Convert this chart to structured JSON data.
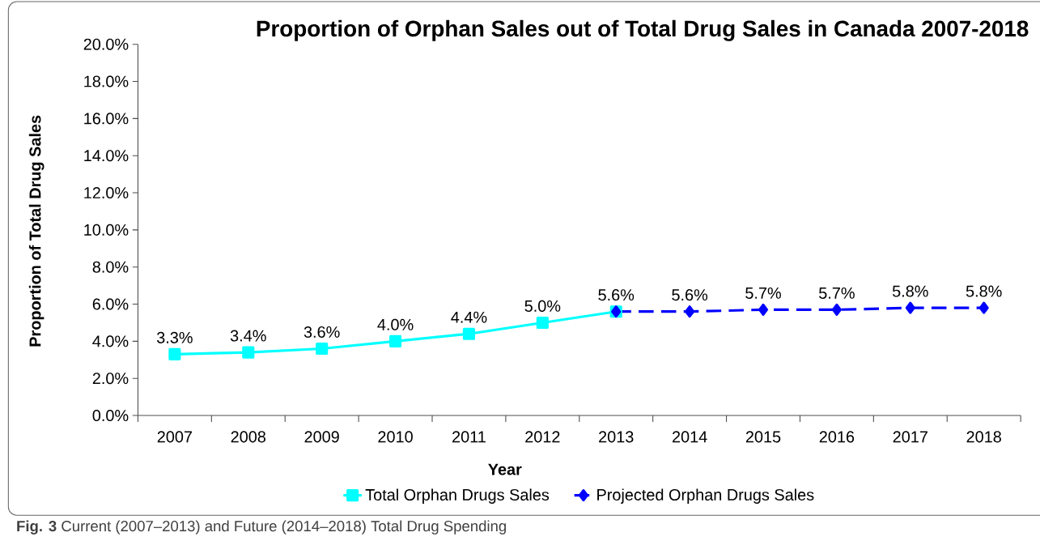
{
  "chart_data": {
    "type": "line",
    "title": "Proportion of Orphan Sales out of Total Drug Sales in Canada 2007-2018",
    "xlabel": "Year",
    "ylabel": "Proportion of Total Drug Sales",
    "categories": [
      "2007",
      "2008",
      "2009",
      "2010",
      "2011",
      "2012",
      "2013",
      "2014",
      "2015",
      "2016",
      "2017",
      "2018"
    ],
    "series": [
      {
        "name": "Total Orphan Drugs Sales",
        "color": "#00ffff",
        "marker": "square",
        "line_style": "solid",
        "values": [
          3.3,
          3.4,
          3.6,
          4.0,
          4.4,
          5.0,
          5.6,
          null,
          null,
          null,
          null,
          null
        ],
        "value_labels": [
          "3.3%",
          "3.4%",
          "3.6%",
          "4.0%",
          "4.4%",
          "5.0%",
          "5.6%",
          null,
          null,
          null,
          null,
          null
        ]
      },
      {
        "name": "Projected Orphan Drugs Sales",
        "color": "#0000ff",
        "marker": "diamond",
        "line_style": "dashed",
        "values": [
          null,
          null,
          null,
          null,
          null,
          null,
          5.6,
          5.6,
          5.7,
          5.7,
          5.8,
          5.8
        ],
        "value_labels": [
          null,
          null,
          null,
          null,
          null,
          null,
          null,
          "5.6%",
          "5.7%",
          "5.7%",
          "5.8%",
          "5.8%"
        ]
      }
    ],
    "ylim": [
      0,
      20
    ],
    "yticks": [
      {
        "value": 0,
        "label": "0.0%"
      },
      {
        "value": 2,
        "label": "2.0%"
      },
      {
        "value": 4,
        "label": "4.0%"
      },
      {
        "value": 6,
        "label": "6.0%"
      },
      {
        "value": 8,
        "label": "8.0%"
      },
      {
        "value": 10,
        "label": "10.0%"
      },
      {
        "value": 12,
        "label": "12.0%"
      },
      {
        "value": 14,
        "label": "14.0%"
      },
      {
        "value": 16,
        "label": "16.0%"
      },
      {
        "value": 18,
        "label": "18.0%"
      },
      {
        "value": 20,
        "label": "20.0%"
      }
    ],
    "legend": "bottom",
    "annotations": [
      "**Fig. 3** Current (2007–2013) and Future (2014–2018) Total Drug Spending"
    ]
  }
}
